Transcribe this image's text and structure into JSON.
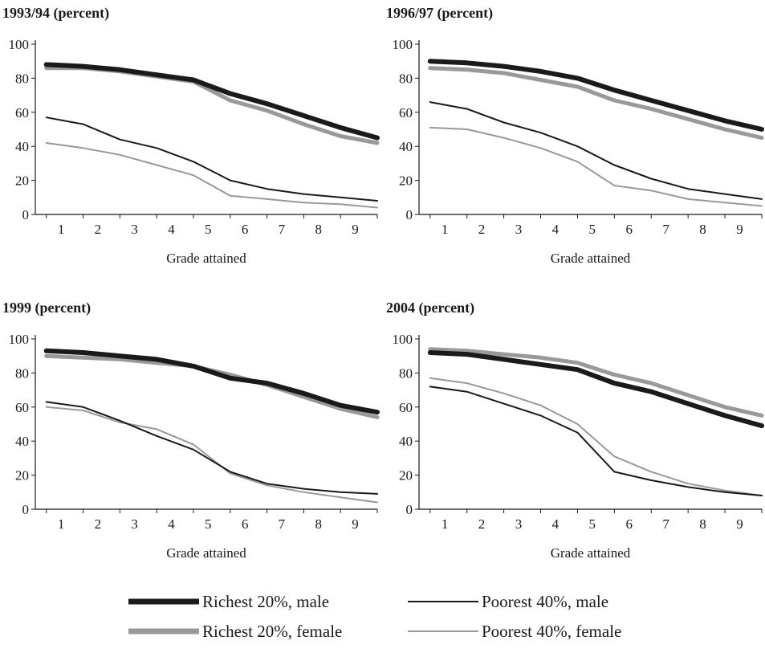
{
  "colors": {
    "dark": "#1a1a1a",
    "gray": "#999999"
  },
  "legend": [
    {
      "key": "rich_male",
      "label": "Richest 20%, male",
      "color": "#1a1a1a",
      "weight": "thick"
    },
    {
      "key": "poor_male",
      "label": "Poorest 40%, male",
      "color": "#1a1a1a",
      "weight": "thin"
    },
    {
      "key": "rich_female",
      "label": "Richest 20%, female",
      "color": "#999999",
      "weight": "thick"
    },
    {
      "key": "poor_female",
      "label": "Poorest 40%, female",
      "color": "#999999",
      "weight": "thin"
    }
  ],
  "chart_data": [
    {
      "type": "line",
      "title": "1993/94 (percent)",
      "xlabel": "Grade attained",
      "ylabel": "",
      "x": [
        0.6,
        1.6,
        2.6,
        3.6,
        4.6,
        5.6,
        6.6,
        7.6,
        8.6,
        9.6
      ],
      "xticks": [
        "1",
        "2",
        "3",
        "4",
        "5",
        "6",
        "7",
        "8",
        "9"
      ],
      "ylim": [
        0,
        100
      ],
      "yticks": [
        0,
        20,
        40,
        60,
        80,
        100
      ],
      "series": [
        {
          "name": "Richest 20%, male",
          "values": [
            88,
            87,
            85,
            82,
            79,
            71,
            65,
            58,
            51,
            45
          ]
        },
        {
          "name": "Richest 20%, female",
          "values": [
            86,
            86,
            84,
            81,
            78,
            67,
            61,
            53,
            46,
            42
          ]
        },
        {
          "name": "Poorest 40%, male",
          "values": [
            57,
            53,
            44,
            39,
            31,
            20,
            15,
            12,
            10,
            8
          ]
        },
        {
          "name": "Poorest 40%, female",
          "values": [
            42,
            39,
            35,
            29,
            23,
            11,
            9,
            7,
            6,
            4
          ]
        }
      ]
    },
    {
      "type": "line",
      "title": "1996/97 (percent)",
      "xlabel": "Grade attained",
      "ylabel": "",
      "x": [
        0.6,
        1.6,
        2.6,
        3.6,
        4.6,
        5.6,
        6.6,
        7.6,
        8.6,
        9.6
      ],
      "xticks": [
        "1",
        "2",
        "3",
        "4",
        "5",
        "6",
        "7",
        "8",
        "9"
      ],
      "ylim": [
        0,
        100
      ],
      "yticks": [
        0,
        20,
        40,
        60,
        80,
        100
      ],
      "series": [
        {
          "name": "Richest 20%, male",
          "values": [
            90,
            89,
            87,
            84,
            80,
            73,
            67,
            61,
            55,
            50
          ]
        },
        {
          "name": "Richest 20%, female",
          "values": [
            86,
            85,
            83,
            79,
            75,
            67,
            62,
            56,
            50,
            45
          ]
        },
        {
          "name": "Poorest 40%, male",
          "values": [
            66,
            62,
            54,
            48,
            40,
            29,
            21,
            15,
            12,
            9
          ]
        },
        {
          "name": "Poorest 40%, female",
          "values": [
            51,
            50,
            45,
            39,
            31,
            17,
            14,
            9,
            7,
            5
          ]
        }
      ]
    },
    {
      "type": "line",
      "title": "1999 (percent)",
      "xlabel": "Grade attained",
      "ylabel": "",
      "x": [
        0.6,
        1.6,
        2.6,
        3.6,
        4.6,
        5.6,
        6.6,
        7.6,
        8.6,
        9.6
      ],
      "xticks": [
        "1",
        "2",
        "3",
        "4",
        "5",
        "6",
        "7",
        "8",
        "9"
      ],
      "ylim": [
        0,
        100
      ],
      "yticks": [
        0,
        20,
        40,
        60,
        80,
        100
      ],
      "series": [
        {
          "name": "Richest 20%, male",
          "values": [
            93,
            92,
            90,
            88,
            84,
            77,
            74,
            68,
            61,
            57
          ]
        },
        {
          "name": "Richest 20%, female",
          "values": [
            90,
            89,
            88,
            86,
            84,
            79,
            73,
            66,
            59,
            54
          ]
        },
        {
          "name": "Poorest 40%, male",
          "values": [
            63,
            60,
            52,
            43,
            35,
            22,
            15,
            12,
            10,
            9
          ]
        },
        {
          "name": "Poorest 40%, female",
          "values": [
            60,
            58,
            51,
            47,
            38,
            21,
            14,
            10,
            7,
            4
          ]
        }
      ]
    },
    {
      "type": "line",
      "title": "2004 (percent)",
      "xlabel": "Grade attained",
      "ylabel": "",
      "x": [
        0.6,
        1.6,
        2.6,
        3.6,
        4.6,
        5.6,
        6.6,
        7.6,
        8.6,
        9.6
      ],
      "xticks": [
        "1",
        "2",
        "3",
        "4",
        "5",
        "6",
        "7",
        "8",
        "9"
      ],
      "ylim": [
        0,
        100
      ],
      "yticks": [
        0,
        20,
        40,
        60,
        80,
        100
      ],
      "series": [
        {
          "name": "Richest 20%, male",
          "values": [
            92,
            91,
            88,
            85,
            82,
            74,
            69,
            62,
            55,
            49
          ]
        },
        {
          "name": "Richest 20%, female",
          "values": [
            94,
            93,
            91,
            89,
            86,
            79,
            74,
            67,
            60,
            55
          ]
        },
        {
          "name": "Poorest 40%, male",
          "values": [
            72,
            69,
            62,
            55,
            45,
            22,
            17,
            13,
            10,
            8
          ]
        },
        {
          "name": "Poorest 40%, female",
          "values": [
            77,
            74,
            68,
            61,
            50,
            31,
            22,
            15,
            11,
            8
          ]
        }
      ]
    }
  ]
}
